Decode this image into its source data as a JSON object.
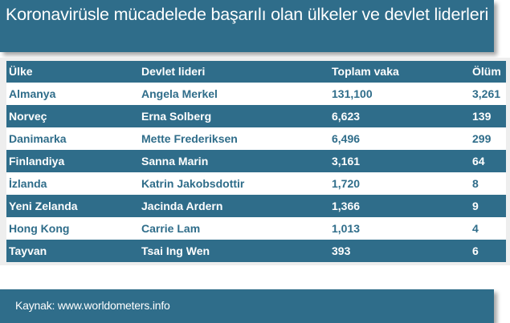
{
  "title": "Koronavirüsle mücadelede başarılı olan ülkeler ve devlet liderleri",
  "table": {
    "headers": {
      "country": "Ülke",
      "leader": "Devlet lideri",
      "cases": "Toplam vaka",
      "deaths": "Ölüm"
    },
    "rows": [
      {
        "country": "Almanya",
        "leader": "Angela Merkel",
        "cases": "131,100",
        "deaths": "3,261"
      },
      {
        "country": "Norveç",
        "leader": "Erna Solberg",
        "cases": "6,623",
        "deaths": "139"
      },
      {
        "country": "Danimarka",
        "leader": "Mette Frederiksen",
        "cases": "6,496",
        "deaths": "299"
      },
      {
        "country": "Finlandiya",
        "leader": "Sanna Marin",
        "cases": "3,161",
        "deaths": "64"
      },
      {
        "country": "İzlanda",
        "leader": "Katrin Jakobsdottir",
        "cases": "1,720",
        "deaths": "8"
      },
      {
        "country": "Yeni Zelanda",
        "leader": "Jacinda Ardern",
        "cases": "1,366",
        "deaths": "9"
      },
      {
        "country": "Hong Kong",
        "leader": "Carrie Lam",
        "cases": "1,013",
        "deaths": "4"
      },
      {
        "country": "Tayvan",
        "leader": "Tsai Ing Wen",
        "cases": "393",
        "deaths": "6"
      }
    ]
  },
  "source": "Kaynak: www.worldometers.info",
  "colors": {
    "accent": "#2f6d8a",
    "panel": "#eeeeee",
    "background": "#ffffff"
  }
}
